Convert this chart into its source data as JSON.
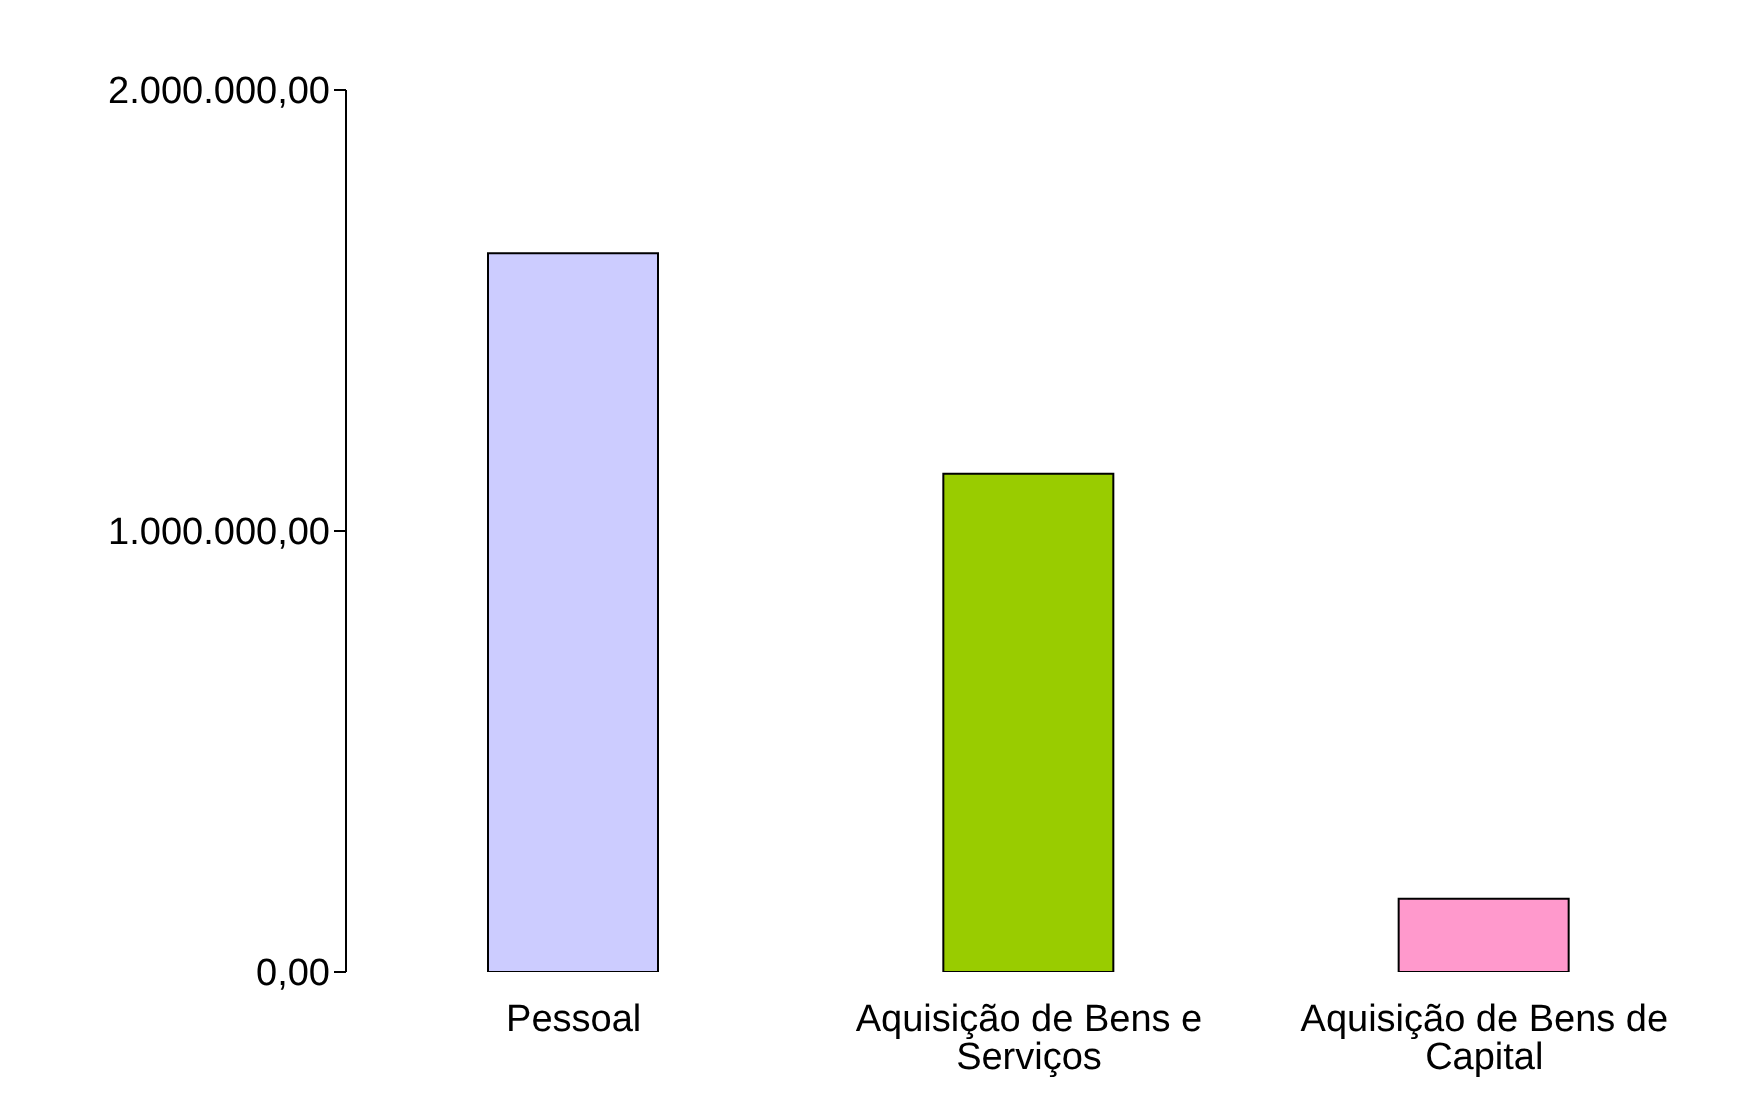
{
  "chart_data": {
    "type": "bar",
    "categories": [
      "Pessoal",
      "Aquisição de Bens e Serviços",
      "Aquisição de Bens de Capital"
    ],
    "values": [
      1630000,
      1130000,
      166000
    ],
    "colors": [
      "#ccccff",
      "#99cc00",
      "#ff99cc"
    ],
    "ylim": [
      0,
      2000000
    ],
    "yticks": [
      {
        "value": 0,
        "label": "0,00"
      },
      {
        "value": 1000000,
        "label": "1.000.000,00"
      },
      {
        "value": 2000000,
        "label": "2.000.000,00"
      }
    ],
    "grid": false,
    "legend": false
  }
}
